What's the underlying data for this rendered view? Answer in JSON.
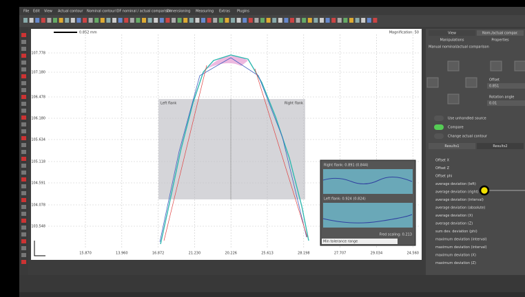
{
  "menu": [
    "File",
    "Edit",
    "View",
    "Actual contour",
    "Nominal contour",
    "IDF nominal / actual comparison",
    "Dimensioning",
    "Measuring",
    "Extras",
    "Plugins"
  ],
  "plot": {
    "scale_bar": "0.852 mm",
    "magnification": "Magnification: 50",
    "y_labels": [
      "107.778",
      "107.180",
      "106.478",
      "106.180",
      "105.634",
      "105.118",
      "104.591",
      "104.078",
      "103.548"
    ],
    "x_labels": [
      "15.870",
      "13.960",
      "16.872",
      "21.230",
      "20.226",
      "25.613",
      "28.198",
      "27.707",
      "29.034",
      "24.560"
    ],
    "left_flank": "Left flank",
    "right_flank": "Right flank",
    "inset": {
      "right": "Right flank: 0.891 (0.844)",
      "left": "Left flank: 0.924 (0.824)",
      "scaling": "Fred scaling: 0.213",
      "dropdown": "Min tolerance range"
    }
  },
  "panel": {
    "tabs": [
      "View",
      "Nom./actual compar."
    ],
    "subtabs": [
      "Manipulations",
      "Properties"
    ],
    "heading": "Manual nominal/actual comparison",
    "offset_label": "Offset",
    "offset_value": "0.851",
    "rotation_label": "Rotation angle",
    "rotation_value": "0.01",
    "toggles": [
      "Use unhandled source",
      "Compare",
      "Change actual contour"
    ],
    "result_tabs": [
      "Results1",
      "Results2"
    ],
    "rows": [
      "Offset X",
      "Offset Z",
      "Offset phi",
      "average deviation (left)",
      "average deviation (right)",
      "average deviation (interval)",
      "average deviation (absolute)",
      "average deviation (X)",
      "average deviation (Z)",
      "sum dev. deviation (phi)",
      "maximum deviation (interval)",
      "maximum deviation (interval)",
      "maximum deviation (X)",
      "maximum deviation (Z)"
    ]
  }
}
